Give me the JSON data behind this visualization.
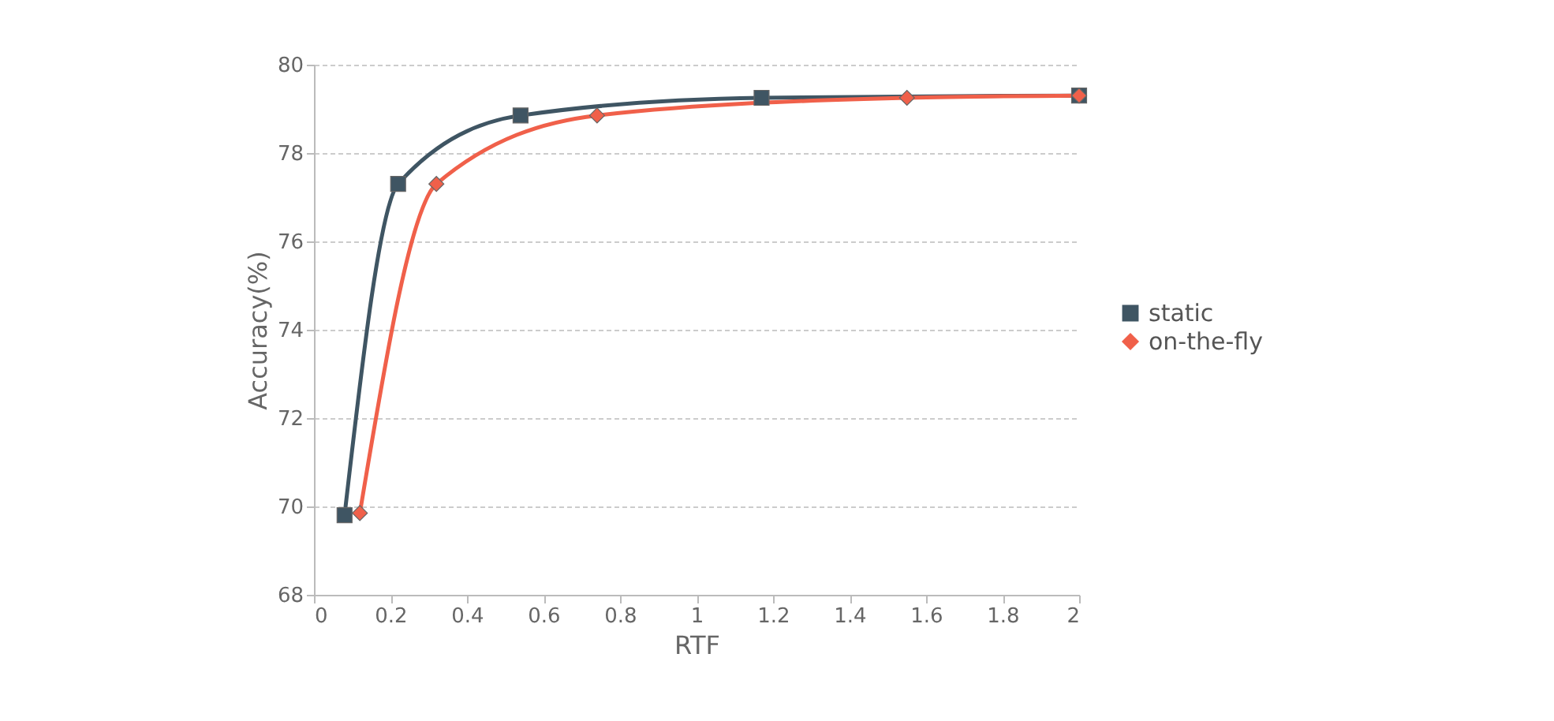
{
  "chart_data": {
    "type": "line",
    "xlabel": "RTF",
    "ylabel": "Accuracy(%)",
    "xlim": [
      0,
      2
    ],
    "xticks": [
      0,
      0.2,
      0.4,
      0.6,
      0.8,
      1,
      1.2,
      1.4,
      1.6,
      1.8,
      2
    ],
    "ylim": [
      68,
      80
    ],
    "yticks": [
      68,
      70,
      72,
      74,
      76,
      78,
      80
    ],
    "grid": "y",
    "legend": "right",
    "line_style": "solid",
    "series": [
      {
        "name": "static",
        "color": "#3f5563",
        "marker": "square",
        "x": [
          0.08,
          0.22,
          0.54,
          1.17,
          2
        ],
        "values": [
          69.8,
          77.3,
          78.85,
          79.25,
          79.3
        ]
      },
      {
        "name": "on-the-fly",
        "color": "#f0604a",
        "marker": "diamond",
        "x": [
          0.12,
          0.32,
          0.74,
          1.55,
          2
        ],
        "values": [
          69.85,
          77.3,
          78.85,
          79.25,
          79.3
        ]
      }
    ]
  }
}
